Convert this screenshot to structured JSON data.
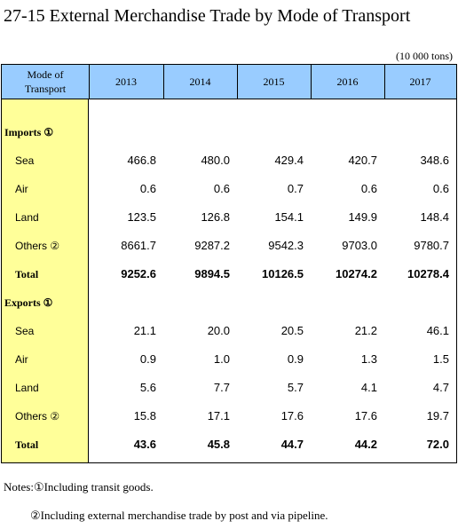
{
  "title": "27-15  External Merchandise Trade by Mode of Transport",
  "unit": "(10 000 tons)",
  "table": {
    "header": [
      "Mode of Transport",
      "2013",
      "2014",
      "2015",
      "2016",
      "2017"
    ],
    "sections": [
      {
        "label": "Imports ①",
        "rows": [
          {
            "label": "Sea",
            "values": [
              "466.8",
              "480.0",
              "429.4",
              "420.7",
              "348.6"
            ]
          },
          {
            "label": "Air",
            "values": [
              "0.6",
              "0.6",
              "0.7",
              "0.6",
              "0.6"
            ]
          },
          {
            "label": "Land",
            "values": [
              "123.5",
              "126.8",
              "154.1",
              "149.9",
              "148.4"
            ]
          },
          {
            "label": "Others ②",
            "values": [
              "8661.7",
              "9287.2",
              "9542.3",
              "9703.0",
              "9780.7"
            ]
          },
          {
            "label": "Total",
            "values": [
              "9252.6",
              "9894.5",
              "10126.5",
              "10274.2",
              "10278.4"
            ]
          }
        ]
      },
      {
        "label": "Exports ①",
        "rows": [
          {
            "label": "Sea",
            "values": [
              "21.1",
              "20.0",
              "20.5",
              "21.2",
              "46.1"
            ]
          },
          {
            "label": "Air",
            "values": [
              "0.9",
              "1.0",
              "0.9",
              "1.3",
              "1.5"
            ]
          },
          {
            "label": "Land",
            "values": [
              "5.6",
              "7.7",
              "5.7",
              "4.1",
              "4.7"
            ]
          },
          {
            "label": "Others ②",
            "values": [
              "15.8",
              "17.1",
              "17.6",
              "17.6",
              "19.7"
            ]
          },
          {
            "label": "Total",
            "values": [
              "43.6",
              "45.8",
              "44.7",
              "44.2",
              "72.0"
            ]
          }
        ]
      }
    ]
  },
  "notes": [
    "Notes:①Including transit goods.",
    "②Including external merchandise trade by post and via pipeline."
  ]
}
